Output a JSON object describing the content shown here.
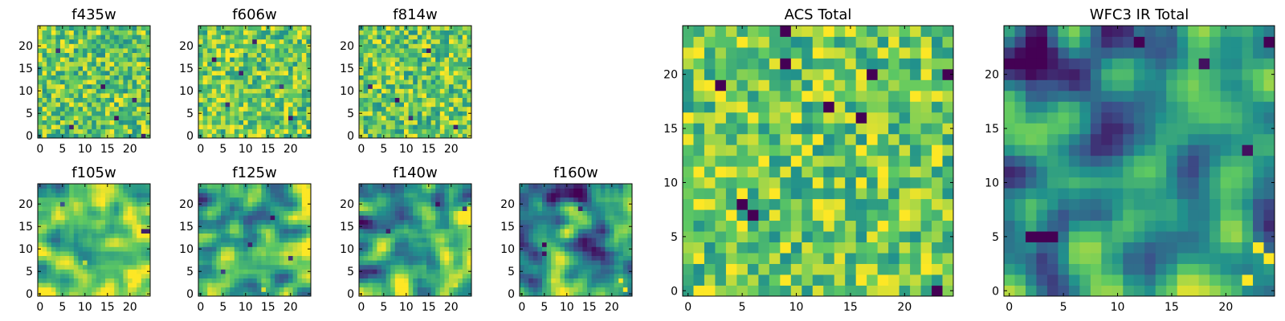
{
  "figure": {
    "description_type": "grid of heatmap panels",
    "colormap": "viridis",
    "colormap_stops": [
      "#440154",
      "#3b528b",
      "#21918c",
      "#5ec962",
      "#fde725"
    ]
  },
  "chart_data": [
    {
      "type": "heatmap",
      "title": "f435w",
      "grid_size": 25,
      "xlim": [
        0,
        24
      ],
      "ylim": [
        0,
        24
      ],
      "xticks": [
        0,
        5,
        10,
        15,
        20
      ],
      "yticks": [
        0,
        5,
        10,
        15,
        20
      ],
      "texture": "noisy",
      "mean_level": 0.74,
      "notable_cells": [
        {
          "x": 17,
          "y": 4,
          "v": 0.05
        },
        {
          "x": 7,
          "y": 2,
          "v": 0.1
        },
        {
          "x": 21,
          "y": 8,
          "v": 0.12
        },
        {
          "x": 14,
          "y": 11,
          "v": 0.05
        },
        {
          "x": 4,
          "y": 19,
          "v": 0.15
        },
        {
          "x": 23,
          "y": 0,
          "v": 0.1
        }
      ]
    },
    {
      "type": "heatmap",
      "title": "f606w",
      "grid_size": 25,
      "xlim": [
        0,
        24
      ],
      "ylim": [
        0,
        24
      ],
      "xticks": [
        0,
        5,
        10,
        15,
        20
      ],
      "yticks": [
        0,
        5,
        10,
        15,
        20
      ],
      "texture": "noisy",
      "mean_level": 0.76,
      "notable_cells": [
        {
          "x": 3,
          "y": 17,
          "v": 0.05
        },
        {
          "x": 9,
          "y": 14,
          "v": 0.1
        },
        {
          "x": 20,
          "y": 4,
          "v": 0.08
        },
        {
          "x": 12,
          "y": 21,
          "v": 0.1
        },
        {
          "x": 6,
          "y": 7,
          "v": 0.15
        },
        {
          "x": 18,
          "y": 11,
          "v": 0.2
        }
      ]
    },
    {
      "type": "heatmap",
      "title": "f814w",
      "grid_size": 25,
      "xlim": [
        0,
        24
      ],
      "ylim": [
        0,
        24
      ],
      "xticks": [
        0,
        5,
        10,
        15,
        20
      ],
      "yticks": [
        0,
        5,
        10,
        15,
        20
      ],
      "texture": "noisy",
      "mean_level": 0.75,
      "notable_cells": [
        {
          "x": 8,
          "y": 8,
          "v": 0.05
        },
        {
          "x": 15,
          "y": 19,
          "v": 0.08
        },
        {
          "x": 2,
          "y": 11,
          "v": 0.12
        },
        {
          "x": 21,
          "y": 2,
          "v": 0.1
        },
        {
          "x": 11,
          "y": 4,
          "v": 0.15
        }
      ]
    },
    {
      "type": "heatmap",
      "title": "f105w",
      "grid_size": 25,
      "xlim": [
        0,
        24
      ],
      "ylim": [
        0,
        24
      ],
      "xticks": [
        0,
        5,
        10,
        15,
        20
      ],
      "yticks": [
        0,
        5,
        10,
        15,
        20
      ],
      "texture": "smooth",
      "mean_level": 0.72,
      "notable_cells": [
        {
          "x": 23,
          "y": 14,
          "v": 0.1
        },
        {
          "x": 24,
          "y": 14,
          "v": 0.1
        },
        {
          "x": 5,
          "y": 20,
          "v": 0.25
        },
        {
          "x": 10,
          "y": 7,
          "v": 0.9
        },
        {
          "x": 20,
          "y": 3,
          "v": 0.92
        }
      ]
    },
    {
      "type": "heatmap",
      "title": "f125w",
      "grid_size": 25,
      "xlim": [
        0,
        24
      ],
      "ylim": [
        0,
        24
      ],
      "xticks": [
        0,
        5,
        10,
        15,
        20
      ],
      "yticks": [
        0,
        5,
        10,
        15,
        20
      ],
      "texture": "smooth",
      "mean_level": 0.64,
      "notable_cells": [
        {
          "x": 16,
          "y": 17,
          "v": 0.05
        },
        {
          "x": 11,
          "y": 11,
          "v": 0.1
        },
        {
          "x": 20,
          "y": 8,
          "v": 0.15
        },
        {
          "x": 5,
          "y": 5,
          "v": 0.2
        },
        {
          "x": 14,
          "y": 1,
          "v": 0.95
        }
      ]
    },
    {
      "type": "heatmap",
      "title": "f140w",
      "grid_size": 25,
      "xlim": [
        0,
        24
      ],
      "ylim": [
        0,
        24
      ],
      "xticks": [
        0,
        5,
        10,
        15,
        20
      ],
      "yticks": [
        0,
        5,
        10,
        15,
        20
      ],
      "texture": "smooth",
      "mean_level": 0.6,
      "notable_cells": [
        {
          "x": 17,
          "y": 20,
          "v": 0.05
        },
        {
          "x": 6,
          "y": 14,
          "v": 0.1
        },
        {
          "x": 3,
          "y": 5,
          "v": 0.12
        },
        {
          "x": 23,
          "y": 19,
          "v": 0.15
        },
        {
          "x": 21,
          "y": 2,
          "v": 0.95
        }
      ]
    },
    {
      "type": "heatmap",
      "title": "f160w",
      "grid_size": 25,
      "xlim": [
        0,
        24
      ],
      "ylim": [
        0,
        24
      ],
      "xticks": [
        0,
        5,
        10,
        15,
        20
      ],
      "yticks": [
        0,
        5,
        10,
        15,
        20
      ],
      "texture": "smooth",
      "mean_level": 0.52,
      "notable_cells": [
        {
          "x": 5,
          "y": 11,
          "v": 0.02
        },
        {
          "x": 5,
          "y": 9,
          "v": 0.05
        },
        {
          "x": 13,
          "y": 19,
          "v": 0.1
        },
        {
          "x": 22,
          "y": 3,
          "v": 0.98
        },
        {
          "x": 23,
          "y": 1,
          "v": 1.0
        }
      ]
    },
    {
      "type": "heatmap",
      "title": "ACS Total",
      "grid_size": 25,
      "xlim": [
        0,
        24
      ],
      "ylim": [
        0,
        24
      ],
      "xticks": [
        0,
        5,
        10,
        15,
        20
      ],
      "yticks": [
        0,
        5,
        10,
        15,
        20
      ],
      "texture": "noisy",
      "mean_level": 0.76,
      "notable_cells": [
        {
          "x": 9,
          "y": 24,
          "v": 0.0
        },
        {
          "x": 3,
          "y": 19,
          "v": 0.0
        },
        {
          "x": 9,
          "y": 21,
          "v": 0.0
        },
        {
          "x": 13,
          "y": 17,
          "v": 0.0
        },
        {
          "x": 16,
          "y": 16,
          "v": 0.0
        },
        {
          "x": 17,
          "y": 20,
          "v": 0.0
        },
        {
          "x": 24,
          "y": 20,
          "v": 0.0
        },
        {
          "x": 5,
          "y": 8,
          "v": 0.0
        },
        {
          "x": 6,
          "y": 7,
          "v": 0.0
        },
        {
          "x": 23,
          "y": 0,
          "v": 0.0
        },
        {
          "x": 18,
          "y": 11,
          "v": 1.0
        },
        {
          "x": 11,
          "y": 13,
          "v": 1.0
        }
      ]
    },
    {
      "type": "heatmap",
      "title": "WFC3 IR Total",
      "grid_size": 25,
      "xlim": [
        0,
        24
      ],
      "ylim": [
        0,
        24
      ],
      "xticks": [
        0,
        5,
        10,
        15,
        20
      ],
      "yticks": [
        0,
        5,
        10,
        15,
        20
      ],
      "texture": "smooth",
      "mean_level": 0.52,
      "notable_cells": [
        {
          "x": 2,
          "y": 5,
          "v": 0.0
        },
        {
          "x": 3,
          "y": 5,
          "v": 0.0
        },
        {
          "x": 4,
          "y": 5,
          "v": 0.0
        },
        {
          "x": 24,
          "y": 23,
          "v": 0.0
        },
        {
          "x": 12,
          "y": 23,
          "v": 0.0
        },
        {
          "x": 18,
          "y": 21,
          "v": 0.05
        },
        {
          "x": 22,
          "y": 13,
          "v": 0.05
        },
        {
          "x": 23,
          "y": 4,
          "v": 1.0
        },
        {
          "x": 24,
          "y": 3,
          "v": 1.0
        },
        {
          "x": 22,
          "y": 1,
          "v": 1.0
        }
      ]
    }
  ]
}
